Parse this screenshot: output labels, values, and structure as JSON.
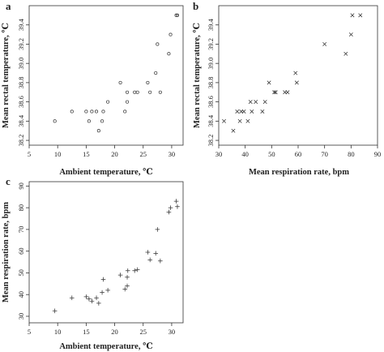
{
  "chart_data": [
    {
      "panel": "a",
      "type": "scatter",
      "marker": "circle",
      "xlabel": "Ambient temperature, ℃",
      "ylabel": "Mean rectal temperature, ℃",
      "xlim": [
        5,
        32
      ],
      "ylim": [
        38.15,
        39.6
      ],
      "xticks": [
        5,
        10,
        15,
        20,
        25,
        30
      ],
      "yticks": [
        38.2,
        38.4,
        38.6,
        38.8,
        39.0,
        39.2,
        39.4
      ],
      "tick_labels_x": [
        "5",
        "10",
        "15",
        "20",
        "25",
        "30"
      ],
      "tick_labels_y": [
        "38.2",
        "38.4",
        "38.6",
        "38.8",
        "39.0",
        "39.2",
        "39.4"
      ],
      "grid": false,
      "points": [
        {
          "x": 9.5,
          "y": 38.4
        },
        {
          "x": 12.5,
          "y": 38.5
        },
        {
          "x": 15.0,
          "y": 38.5
        },
        {
          "x": 15.5,
          "y": 38.4
        },
        {
          "x": 16.0,
          "y": 38.5
        },
        {
          "x": 16.8,
          "y": 38.5
        },
        {
          "x": 17.2,
          "y": 38.3
        },
        {
          "x": 17.8,
          "y": 38.4
        },
        {
          "x": 18.0,
          "y": 38.5
        },
        {
          "x": 18.8,
          "y": 38.6
        },
        {
          "x": 21.0,
          "y": 38.8
        },
        {
          "x": 21.8,
          "y": 38.5
        },
        {
          "x": 22.2,
          "y": 38.6
        },
        {
          "x": 22.2,
          "y": 38.7
        },
        {
          "x": 23.5,
          "y": 38.7
        },
        {
          "x": 24.0,
          "y": 38.7
        },
        {
          "x": 25.8,
          "y": 38.8
        },
        {
          "x": 26.2,
          "y": 38.7
        },
        {
          "x": 27.2,
          "y": 38.9
        },
        {
          "x": 27.5,
          "y": 39.2
        },
        {
          "x": 28.0,
          "y": 38.7
        },
        {
          "x": 29.5,
          "y": 39.1
        },
        {
          "x": 29.8,
          "y": 39.3
        },
        {
          "x": 30.8,
          "y": 39.5
        },
        {
          "x": 31.0,
          "y": 39.5
        }
      ]
    },
    {
      "panel": "b",
      "type": "scatter",
      "marker": "x",
      "xlabel": "Mean respiration rate, bpm",
      "ylabel": "Mean rectal temperature, ℃",
      "xlim": [
        30,
        90
      ],
      "ylim": [
        38.15,
        39.6
      ],
      "xticks": [
        30,
        40,
        50,
        60,
        70,
        80,
        90
      ],
      "yticks": [
        38.2,
        38.4,
        38.6,
        38.8,
        39.0,
        39.2,
        39.4
      ],
      "tick_labels_x": [
        "30",
        "40",
        "50",
        "60",
        "70",
        "80",
        "90"
      ],
      "tick_labels_y": [
        "38.2",
        "38.4",
        "38.6",
        "38.8",
        "39.0",
        "39.2",
        "39.4"
      ],
      "grid": false,
      "points": [
        {
          "x": 32,
          "y": 38.4
        },
        {
          "x": 35.5,
          "y": 38.3
        },
        {
          "x": 37,
          "y": 38.5
        },
        {
          "x": 38,
          "y": 38.4
        },
        {
          "x": 38.5,
          "y": 38.5
        },
        {
          "x": 39.5,
          "y": 38.5
        },
        {
          "x": 41,
          "y": 38.4
        },
        {
          "x": 42,
          "y": 38.6
        },
        {
          "x": 42.5,
          "y": 38.5
        },
        {
          "x": 44,
          "y": 38.6
        },
        {
          "x": 46.5,
          "y": 38.5
        },
        {
          "x": 47.5,
          "y": 38.6
        },
        {
          "x": 49,
          "y": 38.8
        },
        {
          "x": 51,
          "y": 38.7
        },
        {
          "x": 51.5,
          "y": 38.7
        },
        {
          "x": 55,
          "y": 38.7
        },
        {
          "x": 56,
          "y": 38.7
        },
        {
          "x": 59,
          "y": 38.9
        },
        {
          "x": 59.5,
          "y": 38.8
        },
        {
          "x": 70,
          "y": 39.2
        },
        {
          "x": 78,
          "y": 39.1
        },
        {
          "x": 80,
          "y": 39.3
        },
        {
          "x": 80.5,
          "y": 39.5
        },
        {
          "x": 83.5,
          "y": 39.5
        }
      ]
    },
    {
      "panel": "c",
      "type": "scatter",
      "marker": "plus",
      "xlabel": "Ambient temperature, ℃",
      "ylabel": "Mean respiration rate, bpm",
      "xlim": [
        5,
        32
      ],
      "ylim": [
        27,
        92
      ],
      "xticks": [
        5,
        10,
        15,
        20,
        25,
        30
      ],
      "yticks": [
        30,
        40,
        50,
        60,
        70,
        80,
        90
      ],
      "tick_labels_x": [
        "5",
        "10",
        "15",
        "20",
        "25",
        "30"
      ],
      "tick_labels_y": [
        "30",
        "40",
        "50",
        "60",
        "70",
        "80",
        "90"
      ],
      "grid": false,
      "points": [
        {
          "x": 9.5,
          "y": 32.5
        },
        {
          "x": 12.5,
          "y": 38.5
        },
        {
          "x": 15.0,
          "y": 39.0
        },
        {
          "x": 15.5,
          "y": 38.0
        },
        {
          "x": 16.0,
          "y": 37.0
        },
        {
          "x": 16.8,
          "y": 38.5
        },
        {
          "x": 17.2,
          "y": 36.0
        },
        {
          "x": 17.8,
          "y": 41.0
        },
        {
          "x": 18.0,
          "y": 47.0
        },
        {
          "x": 18.8,
          "y": 42.0
        },
        {
          "x": 21.0,
          "y": 49.0
        },
        {
          "x": 21.8,
          "y": 42.5
        },
        {
          "x": 22.2,
          "y": 44.0
        },
        {
          "x": 22.2,
          "y": 48.0
        },
        {
          "x": 22.3,
          "y": 51.0
        },
        {
          "x": 23.5,
          "y": 51.0
        },
        {
          "x": 24.0,
          "y": 51.5
        },
        {
          "x": 25.8,
          "y": 59.5
        },
        {
          "x": 26.2,
          "y": 56.0
        },
        {
          "x": 27.2,
          "y": 59.0
        },
        {
          "x": 27.5,
          "y": 70.0
        },
        {
          "x": 28.0,
          "y": 55.5
        },
        {
          "x": 29.5,
          "y": 78.0
        },
        {
          "x": 29.8,
          "y": 80.0
        },
        {
          "x": 30.8,
          "y": 83.0
        },
        {
          "x": 31.0,
          "y": 80.5
        }
      ]
    }
  ]
}
